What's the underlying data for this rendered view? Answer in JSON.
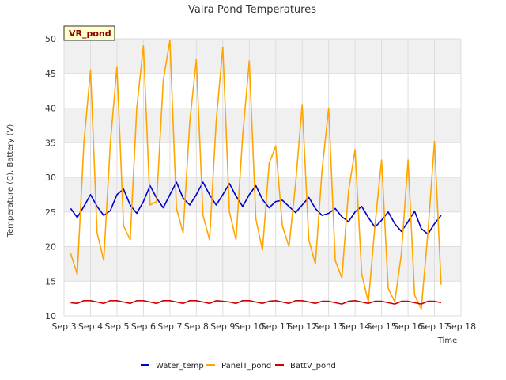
{
  "chart_data": {
    "type": "line",
    "title": "Vaira Pond Temperatures",
    "xlabel": "Time",
    "ylabel": "Temperature (C), Battery (V)",
    "badge": "VR_pond",
    "x_ticks": [
      "Sep 3",
      "Sep 4",
      "Sep 5",
      "Sep 6",
      "Sep 7",
      "Sep 8",
      "Sep 9",
      "Sep 10",
      "Sep 11",
      "Sep 12",
      "Sep 13",
      "Sep 14",
      "Sep 15",
      "Sep 16",
      "Sep 17",
      "Sep 18"
    ],
    "xlim": [
      "Sep 3",
      "Sep 18"
    ],
    "y_ticks": [
      10,
      15,
      20,
      25,
      30,
      35,
      40,
      45,
      50
    ],
    "ylim": [
      10,
      50
    ],
    "grid": true,
    "legend_position": "bottom",
    "colors": {
      "Water_temp": "#0000cc",
      "PanelT_pond": "#ffa500",
      "BattV_pond": "#cc0000"
    },
    "x": [
      "Sep 3 06:00",
      "Sep 3 12:00",
      "Sep 3 18:00",
      "Sep 4 00:00",
      "Sep 4 06:00",
      "Sep 4 12:00",
      "Sep 4 18:00",
      "Sep 5 00:00",
      "Sep 5 06:00",
      "Sep 5 12:00",
      "Sep 5 18:00",
      "Sep 6 00:00",
      "Sep 6 06:00",
      "Sep 6 12:00",
      "Sep 6 18:00",
      "Sep 7 00:00",
      "Sep 7 06:00",
      "Sep 7 12:00",
      "Sep 7 18:00",
      "Sep 8 00:00",
      "Sep 8 06:00",
      "Sep 8 12:00",
      "Sep 8 18:00",
      "Sep 9 00:00",
      "Sep 9 06:00",
      "Sep 9 12:00",
      "Sep 9 18:00",
      "Sep 10 00:00",
      "Sep 10 06:00",
      "Sep 10 12:00",
      "Sep 10 18:00",
      "Sep 11 00:00",
      "Sep 11 06:00",
      "Sep 11 12:00",
      "Sep 11 18:00",
      "Sep 12 00:00",
      "Sep 12 06:00",
      "Sep 12 12:00",
      "Sep 12 18:00",
      "Sep 13 00:00",
      "Sep 13 06:00",
      "Sep 13 12:00",
      "Sep 13 18:00",
      "Sep 14 00:00",
      "Sep 14 06:00",
      "Sep 14 12:00",
      "Sep 14 18:00",
      "Sep 15 00:00",
      "Sep 15 06:00",
      "Sep 15 12:00",
      "Sep 15 18:00",
      "Sep 16 00:00",
      "Sep 16 06:00",
      "Sep 16 12:00",
      "Sep 16 18:00",
      "Sep 17 00:00",
      "Sep 17 06:00"
    ],
    "series": [
      {
        "name": "Water_temp",
        "values": [
          25.5,
          24.2,
          25.8,
          27.5,
          25.8,
          24.5,
          25.2,
          27.5,
          28.3,
          26.0,
          24.8,
          26.5,
          28.8,
          27.0,
          25.6,
          27.5,
          29.3,
          27.0,
          26.0,
          27.5,
          29.3,
          27.5,
          26.0,
          27.5,
          29.1,
          27.3,
          25.8,
          27.5,
          28.8,
          26.8,
          25.6,
          26.5,
          26.7,
          25.8,
          24.9,
          26.0,
          27.1,
          25.5,
          24.5,
          24.8,
          25.5,
          24.3,
          23.6,
          25.0,
          25.8,
          24.2,
          22.8,
          23.8,
          25.0,
          23.3,
          22.2,
          23.6,
          25.1,
          22.6,
          21.8,
          23.3,
          24.5
        ]
      },
      {
        "name": "PanelT_pond",
        "values": [
          19.0,
          16.0,
          35.0,
          45.5,
          22.0,
          18.0,
          35.0,
          46.0,
          23.0,
          21.0,
          40.0,
          49.0,
          26.0,
          26.5,
          44.0,
          49.8,
          25.5,
          22.0,
          38.0,
          47.0,
          24.5,
          21.0,
          38.0,
          48.8,
          25.0,
          21.0,
          36.0,
          46.8,
          24.0,
          19.5,
          32.0,
          34.5,
          23.0,
          20.0,
          29.0,
          40.5,
          21.0,
          17.5,
          31.0,
          40.0,
          18.0,
          15.5,
          28.0,
          34.0,
          16.0,
          12.0,
          23.0,
          32.5,
          14.0,
          12.0,
          19.0,
          32.5,
          13.0,
          11.0,
          22.0,
          35.2,
          14.5
        ]
      },
      {
        "name": "BattV_pond",
        "values": [
          11.9,
          11.8,
          12.2,
          12.2,
          12.0,
          11.8,
          12.2,
          12.2,
          12.0,
          11.8,
          12.2,
          12.2,
          12.0,
          11.8,
          12.2,
          12.2,
          12.0,
          11.8,
          12.2,
          12.2,
          12.0,
          11.8,
          12.2,
          12.1,
          12.0,
          11.8,
          12.2,
          12.2,
          12.0,
          11.8,
          12.1,
          12.2,
          12.0,
          11.8,
          12.2,
          12.2,
          12.0,
          11.8,
          12.1,
          12.1,
          11.9,
          11.7,
          12.1,
          12.2,
          12.0,
          11.8,
          12.1,
          12.1,
          11.9,
          11.7,
          12.1,
          12.1,
          11.9,
          11.7,
          12.1,
          12.1,
          11.9
        ]
      }
    ]
  }
}
